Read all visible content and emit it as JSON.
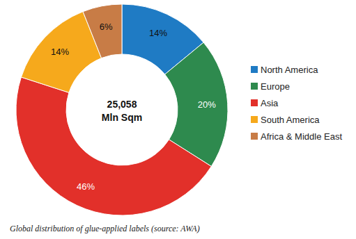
{
  "chart_data": {
    "type": "donut",
    "categories": [
      "North America",
      "Europe",
      "Asia",
      "South America",
      "Africa & Middle East"
    ],
    "values": [
      14,
      20,
      46,
      14,
      6
    ],
    "value_labels": [
      "14%",
      "20%",
      "46%",
      "14%",
      "6%"
    ],
    "colors": [
      "#1f7bc4",
      "#2e8a4e",
      "#e2302a",
      "#f6a91c",
      "#c87c46"
    ],
    "data_labels": true,
    "legend": "right",
    "total": {
      "value": 25058,
      "label": "25,058"
    },
    "unit": "Mln Sqm",
    "caption": "Global distribution of glue-applied labels (source: AWA)"
  }
}
